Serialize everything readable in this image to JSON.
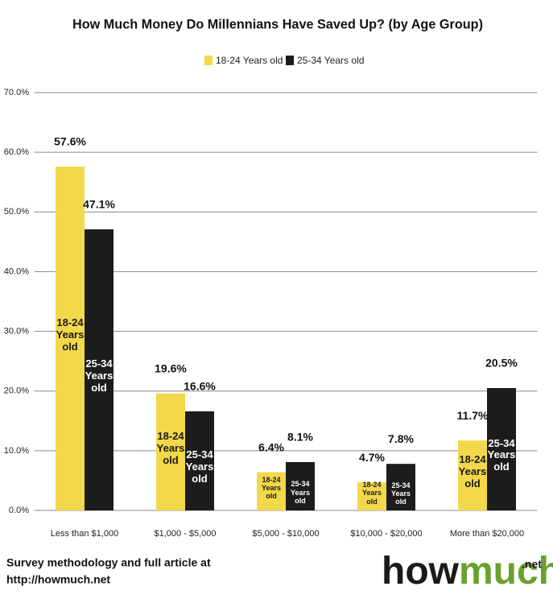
{
  "chart_data": {
    "type": "bar",
    "title": "How Much Money Do Millennians Have Saved Up? (by Age Group)",
    "categories": [
      "Less than $1,000",
      "$1,000 - $5,000",
      "$5,000 - $10,000",
      "$10,000 - $20,000",
      "More than $20,000"
    ],
    "series": [
      {
        "name": "18-24 Years old",
        "color": "#f3d84b",
        "text_color": "#1a1a1a",
        "values": [
          57.6,
          19.6,
          6.4,
          4.7,
          11.7
        ],
        "value_labels": [
          "57.6%",
          "19.6%",
          "6.4%",
          "4.7%",
          "11.7%"
        ]
      },
      {
        "name": "25-34 Years old",
        "color": "#1c1c1c",
        "text_color": "#ffffff",
        "values": [
          47.1,
          16.6,
          8.1,
          7.8,
          20.5
        ],
        "value_labels": [
          "47.1%",
          "16.6%",
          "8.1%",
          "7.8%",
          "20.5%"
        ]
      }
    ],
    "ylim": [
      0,
      70
    ],
    "yticks": [
      {
        "value": 0,
        "label": "0.0%"
      },
      {
        "value": 10,
        "label": "10.0%"
      },
      {
        "value": 20,
        "label": "20.0%"
      },
      {
        "value": 30,
        "label": "30.0%"
      },
      {
        "value": 40,
        "label": "40.0%"
      },
      {
        "value": 50,
        "label": "50.0%"
      },
      {
        "value": 60,
        "label": "60.0%"
      },
      {
        "value": 70,
        "label": "70.0%"
      }
    ],
    "grid": true,
    "legend": "top"
  },
  "footer": {
    "note_lines": [
      "Survey methodology and full article at",
      "http://howmuch.net"
    ],
    "logo": {
      "first": "how",
      "second": "much",
      "suffix": ".net"
    }
  }
}
